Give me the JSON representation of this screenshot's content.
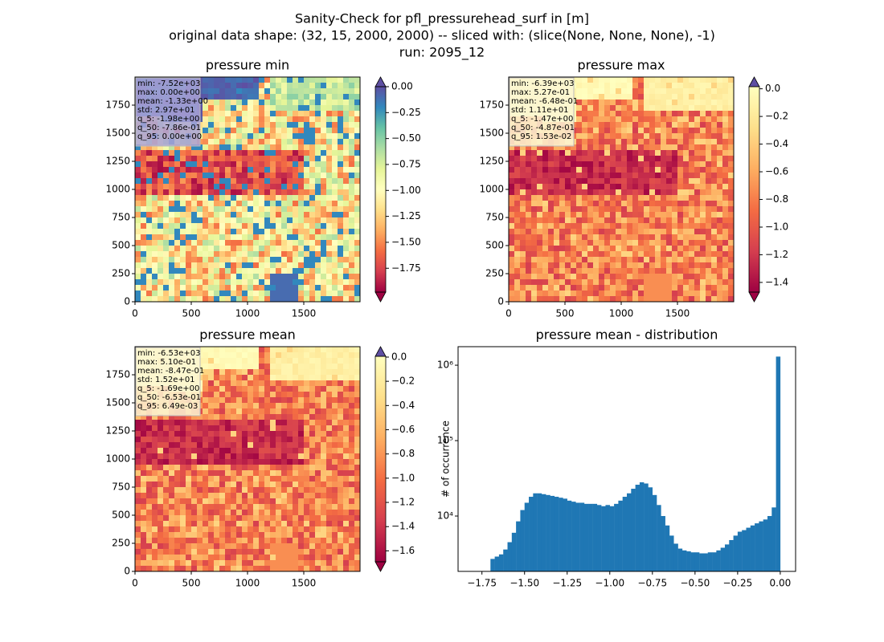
{
  "suptitle": [
    "Sanity-Check for pfl_pressurehead_surf in [m]",
    "original data shape: (32, 15, 2000, 2000) -- sliced with: (slice(None, None, None), -1)",
    "run: 2095_12"
  ],
  "chart_data": [
    {
      "type": "heatmap",
      "title": "pressure min",
      "xlim": [
        0,
        2000
      ],
      "ylim": [
        0,
        2000
      ],
      "xticks": [
        0,
        500,
        1000,
        1500
      ],
      "yticks": [
        0,
        250,
        500,
        750,
        1000,
        1250,
        1500,
        1750
      ],
      "colormap": "Spectral",
      "cmap_range": [
        0,
        1
      ],
      "colorbar": {
        "clim": [
          -1.98,
          0
        ],
        "extend": "both",
        "ticks": [
          {
            "value": 0,
            "label": "0.00"
          },
          {
            "value": -0.25,
            "label": "−0.25"
          },
          {
            "value": -0.5,
            "label": "−0.50"
          },
          {
            "value": -0.75,
            "label": "−0.75"
          },
          {
            "value": -1,
            "label": "−1.00"
          },
          {
            "value": -1.25,
            "label": "−1.25"
          },
          {
            "value": -1.5,
            "label": "−1.50"
          },
          {
            "value": -1.75,
            "label": "−1.75"
          }
        ]
      },
      "stats": [
        "min: -7.52e+03",
        "max: 0.00e+00",
        "mean: -1.33e+00",
        "std: 2.97e+01",
        "q_5: -1.98e+00",
        "q_50: -7.86e-01",
        "q_95: 0.00e+00"
      ],
      "stats_box": "#a9a2d6"
    },
    {
      "type": "heatmap",
      "title": "pressure max",
      "xlim": [
        0,
        2000
      ],
      "ylim": [
        0,
        2000
      ],
      "xticks": [
        0,
        500,
        1000,
        1500
      ],
      "yticks": [
        0,
        250,
        500,
        750,
        1000,
        1250,
        1500,
        1750
      ],
      "colormap": "Spectral",
      "cmap_range": [
        0,
        0.5
      ],
      "colorbar": {
        "clim": [
          -1.47,
          0.0153
        ],
        "extend": "both",
        "ticks": [
          {
            "value": 0,
            "label": "0.0"
          },
          {
            "value": -0.2,
            "label": "−0.2"
          },
          {
            "value": -0.4,
            "label": "−0.4"
          },
          {
            "value": -0.6,
            "label": "−0.6"
          },
          {
            "value": -0.8,
            "label": "−0.8"
          },
          {
            "value": -1,
            "label": "−1.0"
          },
          {
            "value": -1.2,
            "label": "−1.2"
          },
          {
            "value": -1.4,
            "label": "−1.4"
          }
        ]
      },
      "stats": [
        "min: -6.39e+03",
        "max: 5.27e-01",
        "mean: -6.48e-01",
        "std: 1.11e+01",
        "q_5: -1.47e+00",
        "q_50: -4.87e-01",
        "q_95: 1.53e-02"
      ],
      "stats_box": "#fbf6d4"
    },
    {
      "type": "heatmap",
      "title": "pressure mean",
      "xlim": [
        0,
        2000
      ],
      "ylim": [
        0,
        2000
      ],
      "xticks": [
        0,
        500,
        1000,
        1500
      ],
      "yticks": [
        0,
        250,
        500,
        750,
        1000,
        1250,
        1500,
        1750
      ],
      "colormap": "Spectral",
      "cmap_range": [
        0,
        0.5
      ],
      "colorbar": {
        "clim": [
          -1.69,
          0.00649
        ],
        "extend": "both",
        "ticks": [
          {
            "value": 0,
            "label": "0.0"
          },
          {
            "value": -0.2,
            "label": "−0.2"
          },
          {
            "value": -0.4,
            "label": "−0.4"
          },
          {
            "value": -0.6,
            "label": "−0.6"
          },
          {
            "value": -0.8,
            "label": "−0.8"
          },
          {
            "value": -1,
            "label": "−1.0"
          },
          {
            "value": -1.2,
            "label": "−1.2"
          },
          {
            "value": -1.4,
            "label": "−1.4"
          },
          {
            "value": -1.6,
            "label": "−1.6"
          }
        ]
      },
      "stats": [
        "min: -6.53e+03",
        "max: 5.10e-01",
        "mean: -8.47e-01",
        "std: 1.52e+01",
        "q_5: -1.69e+00",
        "q_50: -6.53e-01",
        "q_95: 6.49e-03"
      ],
      "stats_box": "#fbf6d4"
    },
    {
      "type": "histogram",
      "title": "pressure mean - distribution",
      "ylabel": "# of occurrence",
      "color": "#1f77b4",
      "log_y": true,
      "xlim": [
        -1.89,
        0.09
      ],
      "ylim": [
        1845,
        1760000
      ],
      "xticks": [
        {
          "value": -1.75,
          "label": "−1.75"
        },
        {
          "value": -1.5,
          "label": "−1.50"
        },
        {
          "value": -1.25,
          "label": "−1.25"
        },
        {
          "value": -1,
          "label": "−1.00"
        },
        {
          "value": -0.75,
          "label": "−0.75"
        },
        {
          "value": -0.5,
          "label": "−0.50"
        },
        {
          "value": -0.25,
          "label": "−0.25"
        },
        {
          "value": 0,
          "label": "0.00"
        }
      ],
      "yticks": [
        {
          "value": 10000,
          "label": "10⁴"
        },
        {
          "value": 100000,
          "label": "10⁵"
        },
        {
          "value": 1000000,
          "label": "10⁶"
        }
      ],
      "bins": [
        -1.7,
        -1.675,
        -1.65,
        -1.625,
        -1.6,
        -1.575,
        -1.55,
        -1.525,
        -1.5,
        -1.475,
        -1.45,
        -1.425,
        -1.4,
        -1.375,
        -1.35,
        -1.325,
        -1.3,
        -1.275,
        -1.25,
        -1.225,
        -1.2,
        -1.175,
        -1.15,
        -1.125,
        -1.1,
        -1.075,
        -1.05,
        -1.025,
        -1.0,
        -0.975,
        -0.95,
        -0.925,
        -0.9,
        -0.875,
        -0.85,
        -0.825,
        -0.8,
        -0.775,
        -0.75,
        -0.725,
        -0.7,
        -0.675,
        -0.65,
        -0.625,
        -0.6,
        -0.575,
        -0.55,
        -0.525,
        -0.5,
        -0.475,
        -0.45,
        -0.425,
        -0.4,
        -0.375,
        -0.35,
        -0.325,
        -0.3,
        -0.275,
        -0.25,
        -0.225,
        -0.2,
        -0.175,
        -0.15,
        -0.125,
        -0.1,
        -0.075,
        -0.05,
        -0.025,
        0
      ],
      "values": [
        2700,
        2900,
        3100,
        3600,
        4500,
        6000,
        8500,
        12000,
        15000,
        18000,
        20000,
        20000,
        19500,
        19000,
        18500,
        18000,
        17500,
        17000,
        16000,
        15500,
        15000,
        15000,
        14500,
        14500,
        14500,
        14000,
        13500,
        14000,
        13500,
        14500,
        16000,
        18000,
        20000,
        23000,
        26000,
        28000,
        27000,
        24000,
        19000,
        14000,
        10000,
        7500,
        5500,
        4300,
        3700,
        3500,
        3400,
        3300,
        3300,
        3200,
        3200,
        3300,
        3300,
        3500,
        3800,
        4200,
        4800,
        5500,
        6200,
        6500,
        7000,
        7500,
        8000,
        8500,
        9000,
        10000,
        13000,
        1300000
      ]
    }
  ]
}
